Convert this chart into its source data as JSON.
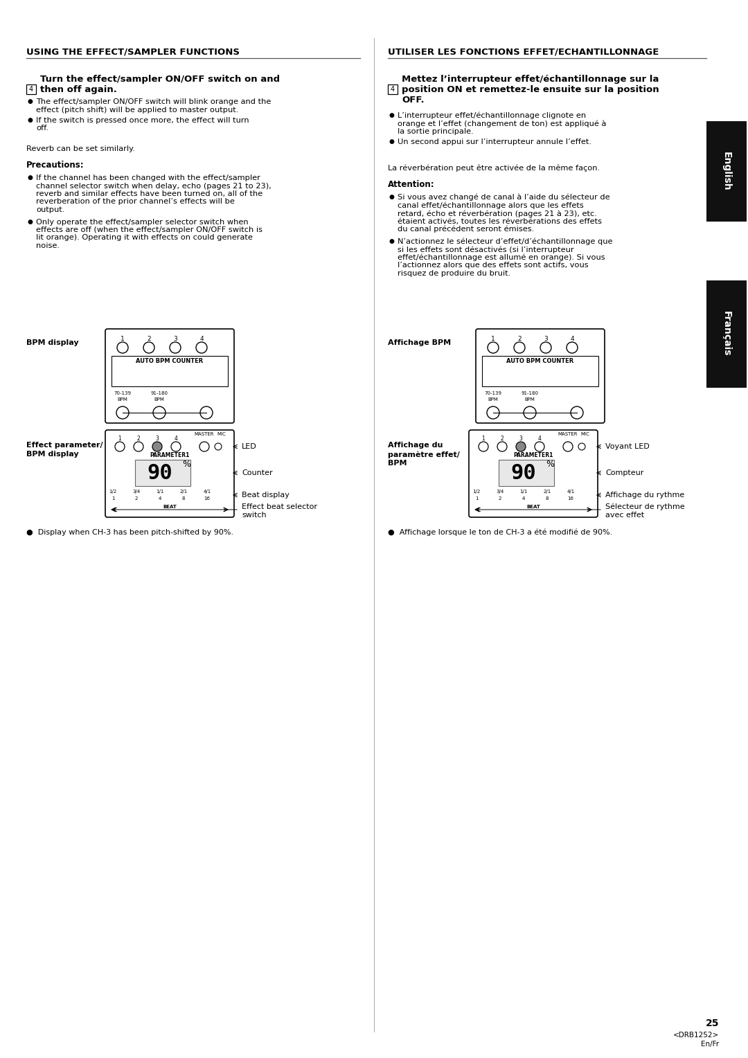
{
  "page_width": 10.8,
  "page_height": 15.28,
  "bg_color": "#ffffff",
  "left_title": "USING THE EFFECT/SAMPLER FUNCTIONS",
  "right_title": "UTILISER LES FONCTIONS EFFET/ECHANTILLONNAGE",
  "step_num": "4",
  "left_heading_1": "Turn the effect/sampler ON/OFF switch on and",
  "left_heading_2": "then off again.",
  "left_bullets": [
    "The effect/sampler ON/OFF switch will blink orange and the effect (pitch shift) will be applied to master output.",
    "If the switch is pressed once more, the effect will turn off."
  ],
  "left_reverb": "Reverb can be set similarly.",
  "left_precautions_title": "Precautions:",
  "left_precautions": [
    "If the channel has been changed with the effect/sampler channel selector switch when delay, echo (pages 21 to 23), reverb and similar effects have been turned on, all of the reverberation of the prior channel’s effects will be output.",
    "Only operate the effect/sampler selector switch when effects are off (when the effect/sampler ON/OFF switch is lit orange). Operating it with effects on could generate noise."
  ],
  "left_bpm_label": "BPM display",
  "left_effect_label_1": "Effect parameter/",
  "left_effect_label_2": "BPM display",
  "left_display_note": "●  Display when CH-3 has been pitch-shifted by 90%.",
  "left_led_label": "LED",
  "left_counter_label": "Counter",
  "left_beat_label": "Beat display",
  "left_effect_beat_1": "Effect beat selector",
  "left_effect_beat_2": "switch",
  "right_heading_1": "Mettez l’interrupteur effet/échantillonnage sur la",
  "right_heading_2": "position ON et remettez-le ensuite sur la position",
  "right_heading_3": "OFF.",
  "right_bullets": [
    "L’interrupteur effet/échantillonnage clignote en orange et l’effet (changement de ton) est appliqué à la sortie principale.",
    "Un second appui sur l’interrupteur annule l’effet."
  ],
  "right_reverb": "La réverbération peut être activée de la même façon.",
  "right_attention_title": "Attention:",
  "right_attention": [
    "Si vous avez changé de canal à l’aide du sélecteur de canal effet/échantillonnage alors que les effets retard, écho et réverbération (pages 21 à 23), etc. étaient activés, toutes les réverbérations des effets du canal précédent seront émises.",
    "N’actionnez le sélecteur d’effet/d’échantillonnage que si les effets sont désactivés (si l’interrupteur effet/échantillonnage est allumé en orange). Si vous l’actionnez alors que des effets sont actifs, vous risquez de produire du bruit."
  ],
  "right_bpm_label": "Affichage BPM",
  "right_effect_label_1": "Affichage du",
  "right_effect_label_2": "paramètre effet/",
  "right_effect_label_3": "BPM",
  "right_display_note": "●  Affichage lorsque le ton de CH-3 a été modifié de 90%.",
  "right_led_label": "Voyant LED",
  "right_counter_label": "Compteur",
  "right_beat_label": "Affichage du rythme",
  "right_effect_beat_1": "Sélecteur de rythme",
  "right_effect_beat_2": "avec effet",
  "english_tab_text": "English",
  "francais_tab_text": "Français",
  "page_num": "25",
  "drb_code": "<DRB1252>",
  "lang_code": "En/Fr"
}
